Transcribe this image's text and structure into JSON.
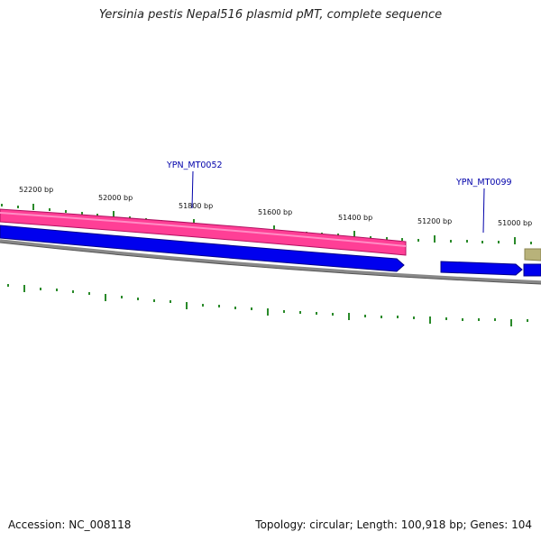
{
  "title": "Yersinia pestis Nepal516 plasmid pMT, complete sequence",
  "footer": {
    "accession": "Accession: NC_008118",
    "stats": "Topology: circular; Length: 100,918 bp; Genes: 104"
  },
  "ticks": [
    "52200 bp",
    "52000 bp",
    "51800 bp",
    "51600 bp",
    "51400 bp",
    "51200 bp",
    "51000 bp"
  ],
  "gene_labels": [
    "YPN_MT0052",
    "YPN_MT0099"
  ],
  "colors": {
    "forward_feature": "#ff3f96",
    "gene_arrow": "#0000ee",
    "backbone": "#888888",
    "tick": "#2a8a2a",
    "label_line": "#0000aa",
    "partial_feature": "#b8b27a"
  }
}
